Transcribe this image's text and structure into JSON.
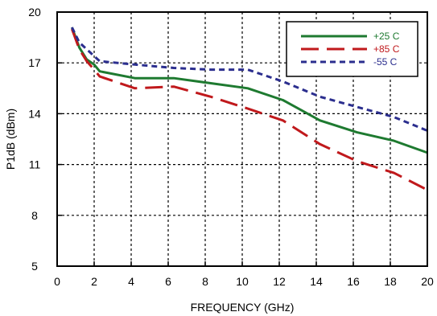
{
  "chart_data": {
    "type": "line",
    "title": "",
    "xlabel": "FREQUENCY (GHz)",
    "ylabel": "P1dB (dBm)",
    "xlim": [
      0,
      20
    ],
    "ylim": [
      5,
      20
    ],
    "xticks": [
      0,
      2,
      4,
      6,
      8,
      10,
      12,
      14,
      16,
      18,
      20
    ],
    "yticks": [
      5,
      8,
      11,
      14,
      17,
      20
    ],
    "xtick_labels": [
      "0",
      "2",
      "4",
      "6",
      "8",
      "10",
      "12",
      "14",
      "16",
      "18",
      "20"
    ],
    "ytick_labels": [
      "5",
      "8",
      "11",
      "14",
      "17",
      "20"
    ],
    "grid": true,
    "legend_position": "top-right",
    "series": [
      {
        "name": "+25 C",
        "color": "#1e7a30",
        "style": "solid",
        "x": [
          0.8,
          1.2,
          1.6,
          2.0,
          2.3,
          4.2,
          6.3,
          8.3,
          10.3,
          12.2,
          14.2,
          16.2,
          18.2,
          20.0
        ],
        "y": [
          19.1,
          17.9,
          17.2,
          16.9,
          16.5,
          16.1,
          16.1,
          15.8,
          15.5,
          14.8,
          13.6,
          12.9,
          12.4,
          11.7
        ]
      },
      {
        "name": "+85 C",
        "color": "#c0191c",
        "style": "longdash",
        "x": [
          0.8,
          1.2,
          1.6,
          2.0,
          2.3,
          4.2,
          6.3,
          8.3,
          10.3,
          12.2,
          14.2,
          16.2,
          18.2,
          20.0
        ],
        "y": [
          19.0,
          17.8,
          17.1,
          16.6,
          16.2,
          15.5,
          15.6,
          15.0,
          14.3,
          13.6,
          12.2,
          11.2,
          10.5,
          9.5
        ]
      },
      {
        "name": "-55 C",
        "color": "#2b2e8e",
        "style": "shortdash",
        "x": [
          0.8,
          1.2,
          1.6,
          2.0,
          2.3,
          4.2,
          6.3,
          8.3,
          10.3,
          12.2,
          14.2,
          16.2,
          18.2,
          20.0
        ],
        "y": [
          19.1,
          18.2,
          17.8,
          17.4,
          17.1,
          16.9,
          16.7,
          16.6,
          16.6,
          15.9,
          15.0,
          14.4,
          13.8,
          13.0
        ]
      }
    ]
  }
}
